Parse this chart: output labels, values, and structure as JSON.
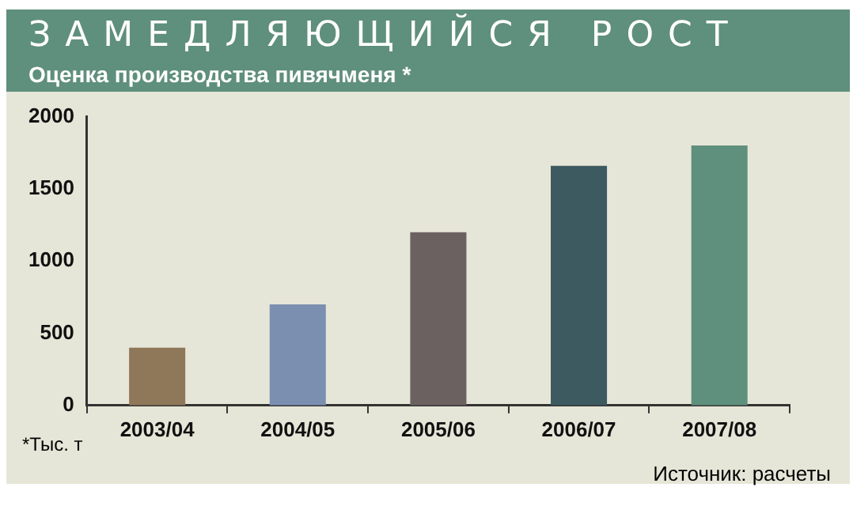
{
  "chart_data": {
    "type": "bar",
    "title": "ЗАМЕДЛЯЮЩИЙСЯ РОСТ",
    "subtitle": "Оценка производства пивячменя *",
    "categories": [
      "2003/04",
      "2004/05",
      "2005/06",
      "2006/07",
      "2007/08"
    ],
    "values": [
      400,
      700,
      1200,
      1660,
      1800
    ],
    "colors": [
      "#8f785a",
      "#7b8fb0",
      "#6b6160",
      "#3d5a60",
      "#5f8f7d"
    ],
    "ylim": [
      0,
      2000
    ],
    "yticks": [
      0,
      500,
      1000,
      1500,
      2000
    ],
    "grid": false,
    "legend": false,
    "annotations": [
      "*Тыс. т",
      "Источник: расчеты"
    ]
  }
}
